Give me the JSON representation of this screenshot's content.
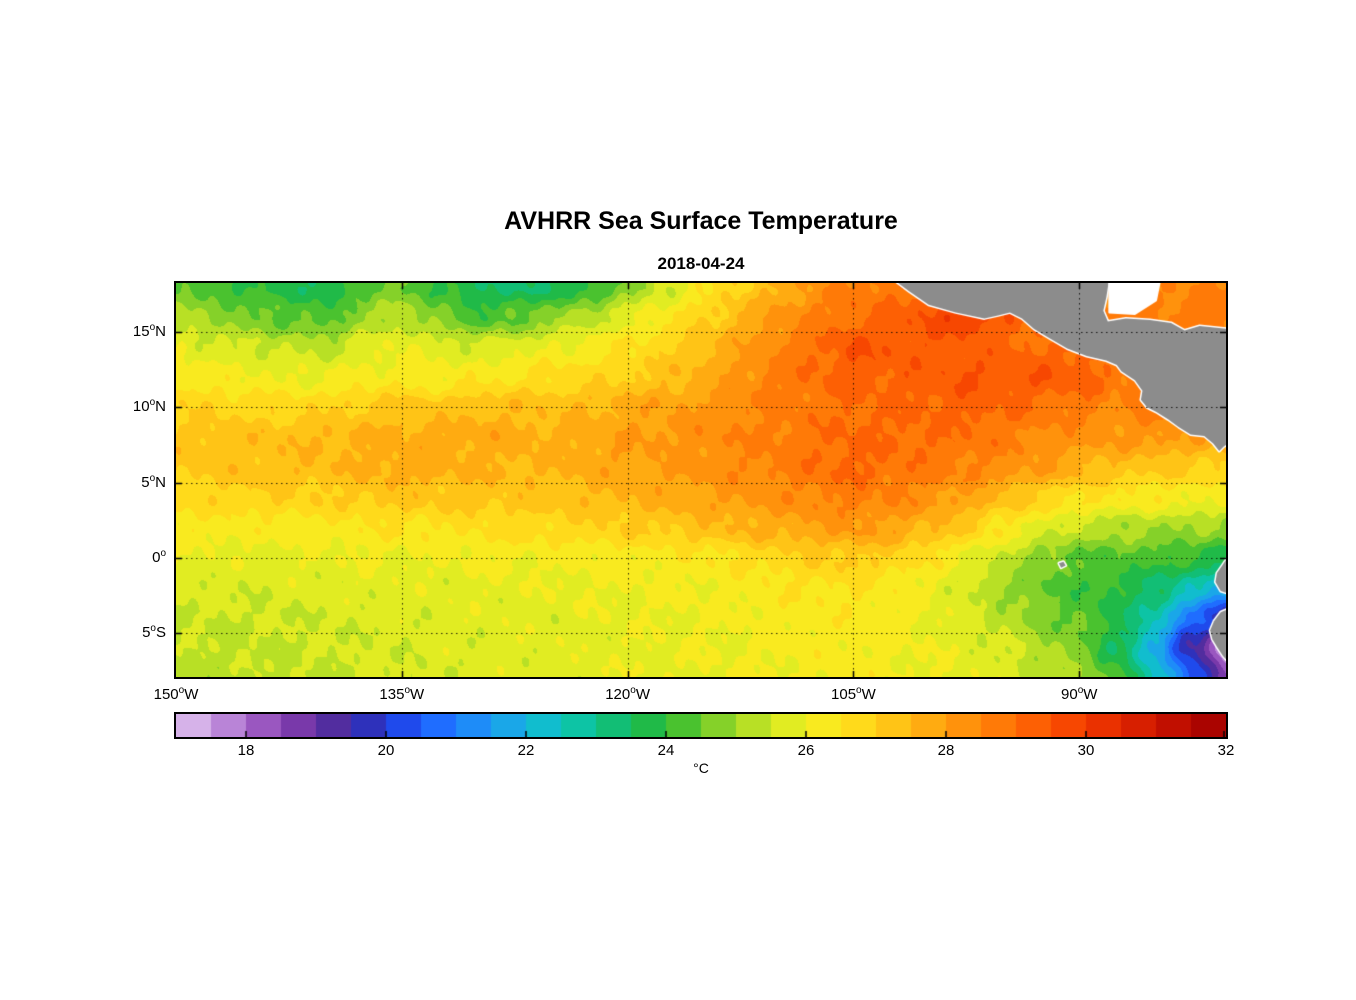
{
  "chart_data": {
    "type": "heatmap",
    "title": "AVHRR Sea Surface Temperature",
    "subtitle": "2018-04-24",
    "projection": {
      "lon_range": [
        -150,
        -80.25
      ],
      "lat_range": [
        -7.9,
        18.25
      ]
    },
    "x_ticks": [
      {
        "value": -150,
        "text": "150",
        "sup": "o",
        "hemi": "W"
      },
      {
        "value": -135,
        "text": "135",
        "sup": "o",
        "hemi": "W"
      },
      {
        "value": -120,
        "text": "120",
        "sup": "o",
        "hemi": "W"
      },
      {
        "value": -105,
        "text": "105",
        "sup": "o",
        "hemi": "W"
      },
      {
        "value": -90,
        "text": "90",
        "sup": "o",
        "hemi": "W"
      }
    ],
    "y_ticks": [
      {
        "value": 15,
        "text": "15",
        "sup": "o",
        "hemi": "N"
      },
      {
        "value": 10,
        "text": "10",
        "sup": "o",
        "hemi": "N"
      },
      {
        "value": 5,
        "text": "5",
        "sup": "o",
        "hemi": "N"
      },
      {
        "value": 0,
        "text": "0",
        "sup": "o",
        "hemi": ""
      },
      {
        "value": -5,
        "text": "5",
        "sup": "o",
        "hemi": "S"
      }
    ],
    "grid_lats": [
      15,
      10,
      5,
      0,
      -5
    ],
    "grid_lons": [
      -135,
      -120,
      -105,
      -90
    ],
    "sst_grid": {
      "units": "degC",
      "lon_start": -150,
      "lon_step": 2.5,
      "lat_start": 18,
      "lat_step": -2,
      "values": [
        [
          24.6,
          24.2,
          23.9,
          23.8,
          23.6,
          24.3,
          24.6,
          24.0,
          23.5,
          23.3,
          23.6,
          23.8,
          24.8,
          25.6,
          26.3,
          27.0,
          27.6,
          28.2,
          28.6,
          28.8,
          29.0,
          29.2,
          28.8,
          28.6,
          28.5,
          28.4,
          28.4,
          28.5,
          28.6
        ],
        [
          25.2,
          24.9,
          24.6,
          24.4,
          24.2,
          25.0,
          25.3,
          24.7,
          24.2,
          24.4,
          24.9,
          25.3,
          25.8,
          26.3,
          26.9,
          27.5,
          28.1,
          28.6,
          29.0,
          29.1,
          29.6,
          30.1,
          29.3,
          28.9,
          28.7,
          28.6,
          28.6,
          28.7,
          28.8
        ],
        [
          25.9,
          25.7,
          25.5,
          25.4,
          25.3,
          25.8,
          26.0,
          25.8,
          25.6,
          25.8,
          26.0,
          26.2,
          26.5,
          26.9,
          27.4,
          27.9,
          28.5,
          29.0,
          29.5,
          29.4,
          29.3,
          29.2,
          29.1,
          29.0,
          29.1,
          28.9,
          29.0,
          28.9,
          28.8
        ],
        [
          26.4,
          26.2,
          26.1,
          26.0,
          26.0,
          26.2,
          26.3,
          26.2,
          26.3,
          26.5,
          26.7,
          26.8,
          27.0,
          27.3,
          27.7,
          28.2,
          28.7,
          29.0,
          29.2,
          29.2,
          29.3,
          29.5,
          29.4,
          29.4,
          29.3,
          28.8,
          29.0,
          28.9,
          28.7
        ],
        [
          26.9,
          26.9,
          26.8,
          26.8,
          26.9,
          27.1,
          27.2,
          27.2,
          27.4,
          27.4,
          27.4,
          27.5,
          27.7,
          27.9,
          28.1,
          28.4,
          28.6,
          28.8,
          29.0,
          29.0,
          29.1,
          29.2,
          29.1,
          28.9,
          28.7,
          28.4,
          28.7,
          28.6,
          28.4
        ],
        [
          27.2,
          27.3,
          27.3,
          27.4,
          27.5,
          27.6,
          27.7,
          27.7,
          27.8,
          27.7,
          27.6,
          27.8,
          28.0,
          28.1,
          28.3,
          28.5,
          28.7,
          28.9,
          29.1,
          29.0,
          29.0,
          28.9,
          28.7,
          28.4,
          28.2,
          28.1,
          28.2,
          28.0,
          27.8
        ],
        [
          27.1,
          27.2,
          27.3,
          27.4,
          27.4,
          27.6,
          27.8,
          27.7,
          27.6,
          27.5,
          27.5,
          27.7,
          27.9,
          28.0,
          28.2,
          28.4,
          28.6,
          28.9,
          29.1,
          28.9,
          28.8,
          28.6,
          28.3,
          28.0,
          27.6,
          27.3,
          27.1,
          27.0,
          27.0
        ],
        [
          26.8,
          26.8,
          26.9,
          26.9,
          27.0,
          27.1,
          27.2,
          27.2,
          27.2,
          27.2,
          27.3,
          27.4,
          27.6,
          27.7,
          27.9,
          28.1,
          28.3,
          28.5,
          28.7,
          28.5,
          28.3,
          27.9,
          27.4,
          26.9,
          26.6,
          26.4,
          26.3,
          26.2,
          26.1
        ],
        [
          26.3,
          26.3,
          26.2,
          26.3,
          26.3,
          26.4,
          26.5,
          26.5,
          26.6,
          26.7,
          26.8,
          26.9,
          27.0,
          27.1,
          27.3,
          27.5,
          27.7,
          27.9,
          28.1,
          27.9,
          27.5,
          27.0,
          26.4,
          25.8,
          25.4,
          25.2,
          25.1,
          25.0,
          24.9
        ],
        [
          25.9,
          25.9,
          25.8,
          25.9,
          25.9,
          26.0,
          26.0,
          26.0,
          26.1,
          26.1,
          26.1,
          26.2,
          26.2,
          26.3,
          26.4,
          26.6,
          26.8,
          27.0,
          27.1,
          26.9,
          26.5,
          26.0,
          25.4,
          24.8,
          24.4,
          24.3,
          24.2,
          24.0,
          23.6
        ],
        [
          25.7,
          25.7,
          25.6,
          25.7,
          25.7,
          25.8,
          25.8,
          25.8,
          25.9,
          25.9,
          25.9,
          26.0,
          26.0,
          26.1,
          26.1,
          26.2,
          26.4,
          26.5,
          26.5,
          26.3,
          26.0,
          25.6,
          25.0,
          24.5,
          24.2,
          23.9,
          23.4,
          22.6,
          21.8
        ],
        [
          25.5,
          25.5,
          25.5,
          25.5,
          25.6,
          25.6,
          25.7,
          25.7,
          25.8,
          25.8,
          25.8,
          25.9,
          25.9,
          26.0,
          26.0,
          26.1,
          26.2,
          26.3,
          26.3,
          26.2,
          26.0,
          25.7,
          25.3,
          24.8,
          24.4,
          23.8,
          22.6,
          20.8,
          19.0
        ],
        [
          25.4,
          25.4,
          25.4,
          25.5,
          25.5,
          25.6,
          25.6,
          25.7,
          25.7,
          25.8,
          25.8,
          25.8,
          25.9,
          25.9,
          26.0,
          26.0,
          26.1,
          26.2,
          26.2,
          26.1,
          26.0,
          25.8,
          25.6,
          25.2,
          24.7,
          23.6,
          21.8,
          19.4,
          17.6
        ],
        [
          25.3,
          25.3,
          25.4,
          25.4,
          25.5,
          25.5,
          25.6,
          25.6,
          25.7,
          25.7,
          25.8,
          25.8,
          25.9,
          25.9,
          26.0,
          26.0,
          26.1,
          26.1,
          26.2,
          26.1,
          26.0,
          25.9,
          25.7,
          25.4,
          25.0,
          24.2,
          22.8,
          20.6,
          18.6
        ]
      ]
    },
    "colormap": [
      {
        "t": 17.0,
        "color": "#e3c9ef"
      },
      {
        "t": 17.5,
        "color": "#c89ae2"
      },
      {
        "t": 18.0,
        "color": "#a96dcb"
      },
      {
        "t": 18.5,
        "color": "#8b41b4"
      },
      {
        "t": 19.0,
        "color": "#67309f"
      },
      {
        "t": 19.5,
        "color": "#3c2a9e"
      },
      {
        "t": 20.0,
        "color": "#2038d8"
      },
      {
        "t": 20.5,
        "color": "#1e5cff"
      },
      {
        "t": 21.0,
        "color": "#1f7dff"
      },
      {
        "t": 21.5,
        "color": "#1d9af0"
      },
      {
        "t": 22.0,
        "color": "#16b4e0"
      },
      {
        "t": 22.5,
        "color": "#0cc6bb"
      },
      {
        "t": 23.0,
        "color": "#0ec18e"
      },
      {
        "t": 23.5,
        "color": "#15ba5c"
      },
      {
        "t": 24.0,
        "color": "#2bba33"
      },
      {
        "t": 24.5,
        "color": "#69c92a"
      },
      {
        "t": 25.0,
        "color": "#a0d827"
      },
      {
        "t": 25.5,
        "color": "#cfe823"
      },
      {
        "t": 26.0,
        "color": "#f2ef20"
      },
      {
        "t": 26.5,
        "color": "#ffe41d"
      },
      {
        "t": 27.0,
        "color": "#ffd018"
      },
      {
        "t": 27.5,
        "color": "#ffb713"
      },
      {
        "t": 28.0,
        "color": "#ff9e0e"
      },
      {
        "t": 28.5,
        "color": "#ff8609"
      },
      {
        "t": 29.0,
        "color": "#ff6d05"
      },
      {
        "t": 29.5,
        "color": "#fb5302"
      },
      {
        "t": 30.0,
        "color": "#f23b00"
      },
      {
        "t": 30.5,
        "color": "#e12700"
      },
      {
        "t": 31.0,
        "color": "#cd1600"
      },
      {
        "t": 31.5,
        "color": "#b50800"
      },
      {
        "t": 32.0,
        "color": "#9e0000"
      }
    ],
    "colorbar": {
      "min": 17,
      "max": 32,
      "segment": 0.5,
      "ticks": [
        18,
        20,
        22,
        24,
        26,
        28,
        30,
        32
      ],
      "unit": "°C"
    },
    "land": {
      "color": "#8c8c8c",
      "outline": "#ffffff",
      "polygons": [
        [
          [
            -102.5,
            18.6
          ],
          [
            -101.3,
            17.7
          ],
          [
            -100.0,
            16.8
          ],
          [
            -98.2,
            16.3
          ],
          [
            -96.3,
            15.9
          ],
          [
            -95.4,
            16.1
          ],
          [
            -94.6,
            16.3
          ],
          [
            -93.8,
            15.9
          ],
          [
            -93.0,
            15.2
          ],
          [
            -92.0,
            14.6
          ],
          [
            -90.8,
            13.9
          ],
          [
            -89.5,
            13.4
          ],
          [
            -88.2,
            13.1
          ],
          [
            -87.5,
            12.8
          ],
          [
            -87.2,
            12.4
          ],
          [
            -86.3,
            11.8
          ],
          [
            -85.8,
            11.1
          ],
          [
            -85.9,
            10.5
          ],
          [
            -85.5,
            10.0
          ],
          [
            -84.9,
            9.7
          ],
          [
            -84.1,
            9.2
          ],
          [
            -83.4,
            8.7
          ],
          [
            -82.6,
            8.2
          ],
          [
            -81.7,
            8.1
          ],
          [
            -81.1,
            7.6
          ],
          [
            -80.7,
            7.1
          ],
          [
            -80.4,
            7.4
          ],
          [
            -80.1,
            7.6
          ],
          [
            -80.1,
            15.2
          ],
          [
            -82.0,
            15.4
          ],
          [
            -83.0,
            15.1
          ],
          [
            -83.9,
            15.6
          ],
          [
            -85.3,
            15.8
          ],
          [
            -86.9,
            15.9
          ],
          [
            -88.1,
            15.7
          ],
          [
            -88.4,
            16.4
          ],
          [
            -88.2,
            17.3
          ],
          [
            -88.0,
            18.6
          ]
        ],
        [
          [
            -79.9,
            0.4
          ],
          [
            -80.5,
            -0.5
          ],
          [
            -80.85,
            -1.0
          ],
          [
            -80.95,
            -1.6
          ],
          [
            -80.6,
            -2.2
          ],
          [
            -79.9,
            -2.4
          ]
        ],
        [
          [
            -79.9,
            -3.3
          ],
          [
            -80.6,
            -3.6
          ],
          [
            -81.05,
            -4.2
          ],
          [
            -81.3,
            -4.8
          ],
          [
            -81.15,
            -5.4
          ],
          [
            -80.85,
            -5.9
          ],
          [
            -80.45,
            -6.5
          ],
          [
            -79.9,
            -7.1
          ]
        ],
        [
          [
            -91.35,
            -0.35
          ],
          [
            -91.05,
            -0.25
          ],
          [
            -90.9,
            -0.5
          ],
          [
            -91.2,
            -0.65
          ]
        ]
      ],
      "masks": [
        [
          [
            -88.0,
            18.6
          ],
          [
            -84.6,
            18.6
          ],
          [
            -84.9,
            17.1
          ],
          [
            -86.3,
            16.2
          ],
          [
            -88.0,
            16.3
          ]
        ]
      ]
    }
  }
}
